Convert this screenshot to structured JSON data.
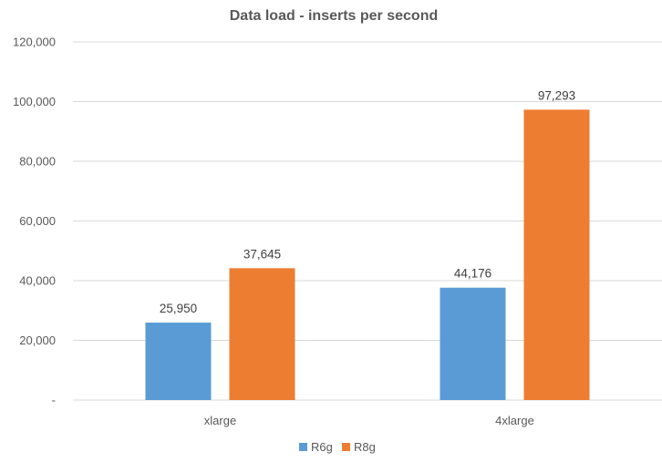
{
  "chart_data": {
    "type": "bar",
    "title": "Data load - inserts per second",
    "xlabel": "",
    "ylabel": "",
    "categories": [
      "xlarge",
      "4xlarge"
    ],
    "series": [
      {
        "name": "R6g",
        "color": "#5b9bd5",
        "values": [
          25950,
          37645
        ]
      },
      {
        "name": "R8g",
        "color": "#ed7d31",
        "values": [
          44176,
          97293
        ]
      }
    ],
    "ylim": [
      0,
      120000
    ],
    "yticks": [
      0,
      20000,
      40000,
      60000,
      80000,
      100000,
      120000
    ],
    "ytick_labels": [
      "-",
      "20,000",
      "40,000",
      "60,000",
      "80,000",
      "100,000",
      "120,000"
    ],
    "data_labels": [
      [
        "25,950",
        "37,645"
      ],
      [
        "44,176",
        "97,293"
      ]
    ],
    "grid": true,
    "gridline_color": "#d9d9d9",
    "legend_position": "bottom"
  }
}
